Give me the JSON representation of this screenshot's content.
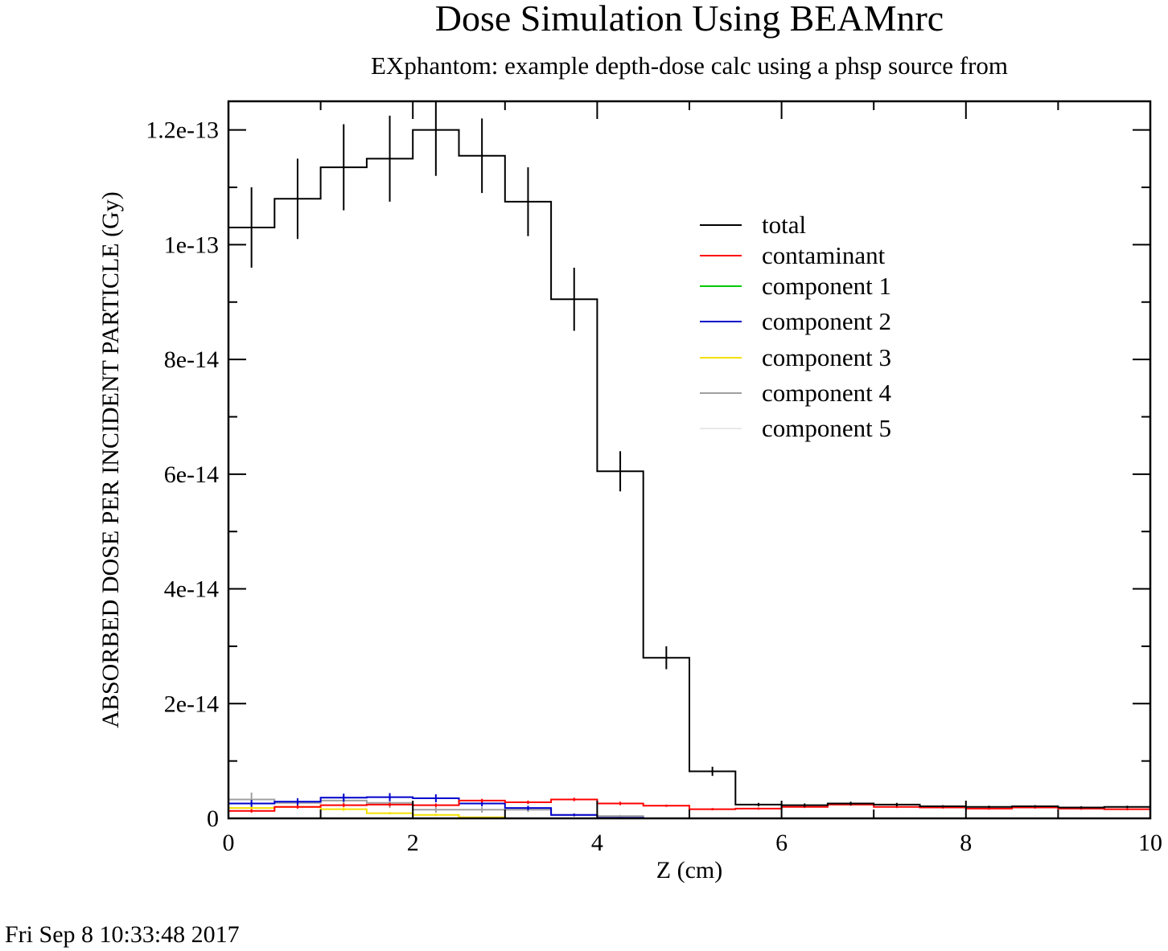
{
  "chart_data": {
    "type": "line",
    "title": "Dose Simulation Using BEAMnrc",
    "subtitle": "EXphantom: example depth-dose calc using a phsp source from",
    "xlabel": "Z (cm)",
    "ylabel": "ABSORBED DOSE PER INCIDENT PARTICLE (Gy)",
    "xlim": [
      0,
      10
    ],
    "ylim": [
      0,
      1.25e-13
    ],
    "x_ticks": [
      0,
      2,
      4,
      6,
      8,
      10
    ],
    "x_tick_labels": [
      "0",
      "2",
      "4",
      "6",
      "8",
      "10"
    ],
    "y_ticks": [
      0,
      2e-14,
      4e-14,
      6e-14,
      8e-14,
      1e-13,
      1.2e-13
    ],
    "y_tick_labels": [
      "0",
      "2e-14",
      "4e-14",
      "6e-14",
      "8e-14",
      "1e-13",
      "1.2e-13"
    ],
    "grid": false,
    "legend_position": "upper-right",
    "bin_edges": [
      0,
      0.5,
      1,
      1.5,
      2,
      2.5,
      3,
      3.5,
      4,
      4.5,
      5,
      5.5,
      6,
      6.5,
      7,
      7.5,
      8,
      8.5,
      9,
      9.5,
      10
    ],
    "series": [
      {
        "name": "total",
        "color": "#000000",
        "values": [
          1.03e-13,
          1.08e-13,
          1.135e-13,
          1.15e-13,
          1.2e-13,
          1.155e-13,
          1.075e-13,
          9.05e-14,
          6.05e-14,
          2.8e-14,
          8.2e-15,
          2.4e-15,
          2.3e-15,
          2.6e-15,
          2.4e-15,
          2.1e-15,
          2e-15,
          2.1e-15,
          1.9e-15,
          2e-15
        ],
        "errors": [
          7e-15,
          7e-15,
          7.5e-15,
          7.5e-15,
          8e-15,
          6.5e-15,
          6e-15,
          5.5e-15,
          3.5e-15,
          2e-15,
          8e-16,
          3e-16,
          3e-16,
          3e-16,
          3e-16,
          2e-16,
          2e-16,
          2e-16,
          2e-16,
          2e-16
        ]
      },
      {
        "name": "contaminant",
        "color": "#ff0000",
        "values": [
          1.3e-15,
          2e-15,
          2.3e-15,
          2.4e-15,
          2.3e-15,
          3.1e-15,
          2.8e-15,
          3.3e-15,
          2.6e-15,
          2.2e-15,
          1.6e-15,
          1.7e-15,
          2e-15,
          2.4e-15,
          2e-15,
          1.9e-15,
          1.7e-15,
          1.9e-15,
          1.7e-15,
          1.6e-15
        ],
        "errors": [
          3e-16,
          3e-16,
          3e-16,
          3e-16,
          3e-16,
          3e-16,
          3e-16,
          3e-16,
          3e-16,
          2e-16,
          2e-16,
          2e-16,
          2e-16,
          2e-16,
          2e-16,
          2e-16,
          2e-16,
          2e-16,
          2e-16,
          2e-16
        ]
      },
      {
        "name": "component 1",
        "color": "#00cc00",
        "values": [
          0,
          0,
          0,
          0,
          0,
          0,
          0,
          0,
          0,
          0,
          0,
          0,
          0,
          0,
          0,
          0,
          0,
          0,
          0,
          0
        ],
        "errors": [
          0,
          0,
          0,
          0,
          0,
          0,
          0,
          0,
          0,
          0,
          0,
          0,
          0,
          0,
          0,
          0,
          0,
          0,
          0,
          0
        ]
      },
      {
        "name": "component 2",
        "color": "#0000cc",
        "values": [
          2.6e-15,
          2.9e-15,
          3.6e-15,
          3.7e-15,
          3.5e-15,
          2.6e-15,
          1.8e-15,
          6e-16,
          1e-16,
          0,
          0,
          0,
          0,
          0,
          0,
          0,
          0,
          0,
          0,
          0
        ],
        "errors": [
          6e-16,
          6e-16,
          7e-16,
          7e-16,
          7e-16,
          5e-16,
          4e-16,
          2e-16,
          0,
          0,
          0,
          0,
          0,
          0,
          0,
          0,
          0,
          0,
          0,
          0
        ]
      },
      {
        "name": "component 3",
        "color": "#f5e000",
        "values": [
          1.8e-15,
          2e-15,
          1.6e-15,
          9e-16,
          6e-16,
          2e-16,
          0,
          0,
          0,
          0,
          0,
          0,
          0,
          0,
          0,
          0,
          0,
          0,
          0,
          0
        ],
        "errors": [
          3e-16,
          3e-16,
          3e-16,
          2e-16,
          2e-16,
          1e-16,
          0,
          0,
          0,
          0,
          0,
          0,
          0,
          0,
          0,
          0,
          0,
          0,
          0,
          0
        ]
      },
      {
        "name": "component 4",
        "color": "#a0a0a0",
        "values": [
          3.3e-15,
          2.7e-15,
          3.1e-15,
          2.7e-15,
          1.5e-15,
          1.5e-15,
          1.5e-15,
          6e-16,
          4e-16,
          0,
          0,
          0,
          0,
          0,
          0,
          0,
          0,
          0,
          0,
          0
        ],
        "errors": [
          1.2e-15,
          8e-16,
          1.1e-15,
          9e-16,
          5e-16,
          5e-16,
          4e-16,
          3e-16,
          2e-16,
          0,
          0,
          0,
          0,
          0,
          0,
          0,
          0,
          0,
          0,
          0
        ]
      },
      {
        "name": "component 5",
        "color": "#e8e8e8",
        "values": [
          0,
          0,
          0,
          0,
          0,
          0,
          0,
          0,
          0,
          0,
          0,
          0,
          0,
          0,
          0,
          0,
          0,
          0,
          0,
          0
        ],
        "errors": [
          0,
          0,
          0,
          0,
          0,
          0,
          0,
          0,
          0,
          0,
          0,
          0,
          0,
          0,
          0,
          0,
          0,
          0,
          0,
          0
        ]
      }
    ]
  },
  "timestamp": "Fri Sep  8 10:33:48 2017"
}
